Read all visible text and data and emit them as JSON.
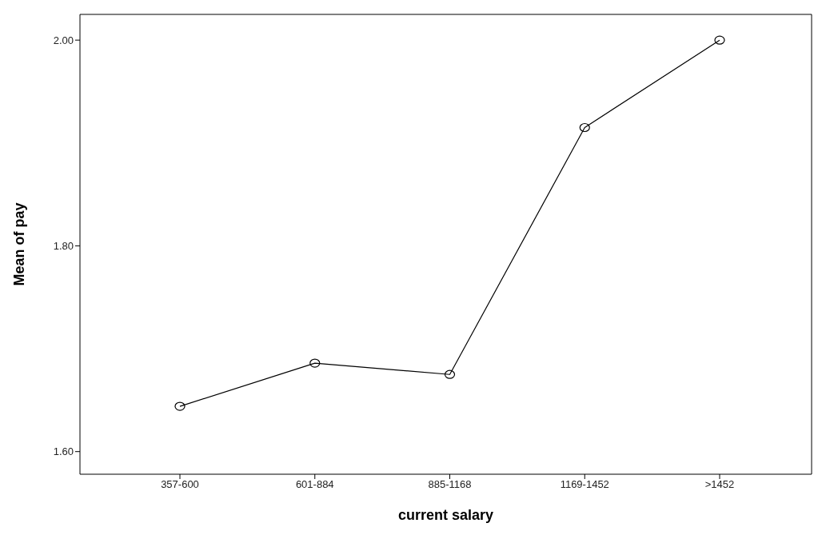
{
  "chart_data": {
    "type": "line",
    "xlabel": "current salary",
    "ylabel": "Mean of pay",
    "categories": [
      "357-600",
      "601-884",
      "885-1168",
      "1169-1452",
      ">1452"
    ],
    "series": [
      {
        "color": "#000000",
        "values": [
          1.644,
          1.686,
          1.675,
          1.915,
          2.0
        ]
      }
    ],
    "ylim": [
      1.578,
      2.025
    ],
    "yticks": [
      {
        "value": 1.6,
        "label": "1.60"
      },
      {
        "value": 1.8,
        "label": "1.80"
      },
      {
        "value": 2.0,
        "label": "2.00"
      }
    ],
    "marker": "circle",
    "line_style": "solid",
    "grid": false,
    "legend": false
  }
}
